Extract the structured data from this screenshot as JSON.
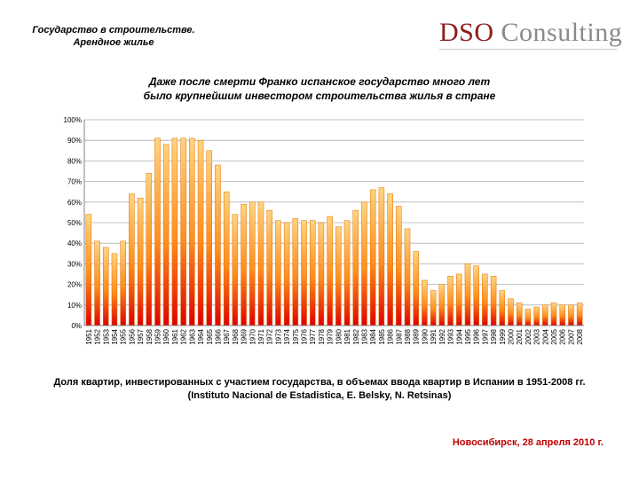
{
  "header": {
    "line1": "Государство в строительстве.",
    "line2": "Арендное жилье"
  },
  "logo": {
    "part1": "DSO",
    "part2": "Consulting"
  },
  "chart_data": {
    "type": "bar",
    "title_line1": "Даже после смерти Франко испанское государство много лет",
    "title_line2": "было крупнейшим инвестором строительства жилья в стране",
    "xlabel": "",
    "ylabel": "",
    "ylim": [
      0,
      100
    ],
    "yticks": [
      "0%",
      "10%",
      "20%",
      "30%",
      "40%",
      "50%",
      "60%",
      "70%",
      "80%",
      "90%",
      "100%"
    ],
    "grid": true,
    "categories": [
      "1951",
      "1952",
      "1953",
      "1954",
      "1955",
      "1956",
      "1957",
      "1958",
      "1959",
      "1960",
      "1961",
      "1962",
      "1963",
      "1964",
      "1965",
      "1966",
      "1967",
      "1968",
      "1969",
      "1970",
      "1971",
      "1972",
      "1973",
      "1974",
      "1975",
      "1976",
      "1977",
      "1978",
      "1979",
      "1980",
      "1981",
      "1982",
      "1983",
      "1984",
      "1985",
      "1986",
      "1987",
      "1988",
      "1989",
      "1990",
      "1991",
      "1992",
      "1993",
      "1994",
      "1995",
      "1996",
      "1997",
      "1998",
      "1999",
      "2000",
      "2001",
      "2002",
      "2003",
      "2004",
      "2005",
      "2006",
      "2007",
      "2008"
    ],
    "values": [
      54,
      41,
      38,
      35,
      41,
      64,
      62,
      74,
      91,
      88,
      91,
      91,
      91,
      90,
      85,
      78,
      65,
      54,
      59,
      60,
      60,
      56,
      51,
      50,
      52,
      51,
      51,
      50,
      53,
      48,
      51,
      56,
      60,
      66,
      67,
      64,
      58,
      47,
      36,
      22,
      17,
      20,
      24,
      25,
      30,
      29,
      25,
      24,
      17,
      13,
      11,
      8,
      9,
      10,
      11,
      10,
      10,
      11
    ],
    "colors": {
      "bar_top": "#ffd480",
      "bar_mid": "#ff8c1a",
      "bar_bottom": "#e00000",
      "bar_edge": "#e07000",
      "grid": "#b0b0b0",
      "axis": "#808080"
    }
  },
  "caption": {
    "line1": "Доля квартир, инвестированных с участием государства, в объемах ввода квартир в Испании в 1951-2008 гг.",
    "line2": "(Instituto Nacional de Estadistica, E. Belsky, N. Retsinas)"
  },
  "footer": {
    "text": "Новосибирск, 28 апреля 2010 г."
  }
}
